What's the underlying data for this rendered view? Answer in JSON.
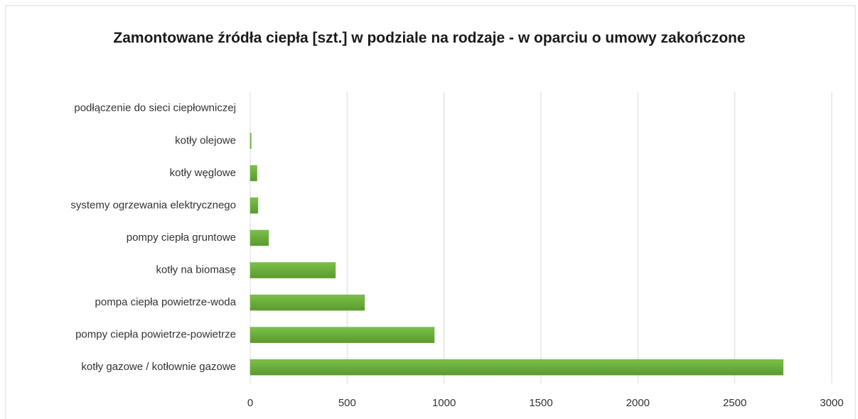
{
  "chart_data": {
    "type": "bar",
    "orientation": "horizontal",
    "title": "Zamontowane źródła ciepła [szt.] w podziale na rodzaje - w oparciu o umowy zakończone",
    "categories": [
      "podłączenie do sieci ciepłowniczej",
      "kotły olejowe",
      "kotły węglowe",
      "systemy ogrzewania elektrycznego",
      "pompy ciepła gruntowe",
      "kotły na biomasę",
      "pompa ciepła powietrze-woda",
      "pompy ciepła powietrze-powietrze",
      "kotły gazowe / kotłownie gazowe"
    ],
    "values": [
      0,
      5,
      35,
      40,
      95,
      440,
      590,
      950,
      2750
    ],
    "color": "#6aaa3a",
    "xlim": [
      0,
      3000
    ],
    "xticks": [
      0,
      500,
      1000,
      1500,
      2000,
      2500,
      3000
    ],
    "grid": true
  }
}
